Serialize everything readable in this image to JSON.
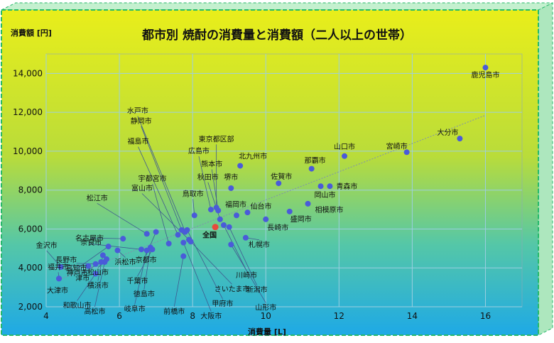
{
  "chart_data": {
    "type": "scatter",
    "title": "都市別 焼酎の消費量と消費額（二人以上の世帯）",
    "xlabel": "消費量 [L]",
    "ylabel": "消費額 [円]",
    "xlim": [
      4,
      17
    ],
    "ylim": [
      2000,
      15000
    ],
    "xticks": [
      4,
      6,
      8,
      10,
      12,
      14,
      16
    ],
    "yticks": [
      2000,
      4000,
      6000,
      8000,
      10000,
      12000,
      14000
    ],
    "ytick_labels": [
      "2,000",
      "4,000",
      "6,000",
      "8,000",
      "10,000",
      "12,000",
      "14,000"
    ],
    "grid": true,
    "trendline": true,
    "colors": {
      "point": "#4a5bd9",
      "highlight": "#e84a3c",
      "grid": "#9ccfe0",
      "frame": "#1bc86a"
    },
    "points": [
      {
        "name": "鹿児島市",
        "x": 16.0,
        "y": 14300
      },
      {
        "name": "大分市",
        "x": 15.3,
        "y": 10650
      },
      {
        "name": "宮崎市",
        "x": 13.85,
        "y": 9950
      },
      {
        "name": "山口市",
        "x": 12.15,
        "y": 9750
      },
      {
        "name": "那覇市",
        "x": 11.25,
        "y": 9100
      },
      {
        "name": "青森市",
        "x": 11.75,
        "y": 8200
      },
      {
        "name": "岡山市",
        "x": 11.5,
        "y": 8200
      },
      {
        "name": "相模原市",
        "x": 11.15,
        "y": 7300
      },
      {
        "name": "盛岡市",
        "x": 10.65,
        "y": 6900
      },
      {
        "name": "佐賀市",
        "x": 10.35,
        "y": 8350
      },
      {
        "name": "長崎市",
        "x": 10.0,
        "y": 6500
      },
      {
        "name": "仙台市",
        "x": 9.5,
        "y": 6850
      },
      {
        "name": "札幌市",
        "x": 9.45,
        "y": 5550
      },
      {
        "name": "北九州市",
        "x": 9.3,
        "y": 9250
      },
      {
        "name": "福岡市",
        "x": 9.2,
        "y": 6700
      },
      {
        "name": "堺市",
        "x": 9.05,
        "y": 8100
      },
      {
        "name": "東京都区部",
        "x": 8.65,
        "y": 7100
      },
      {
        "name": "広島市",
        "x": 8.5,
        "y": 7000
      },
      {
        "name": "熊本市",
        "x": 8.7,
        "y": 6950
      },
      {
        "name": "秋田市",
        "x": 8.75,
        "y": 6500
      },
      {
        "name": "鳥取市",
        "x": 8.05,
        "y": 6700
      },
      {
        "name": "全国",
        "x": 8.62,
        "y": 6100,
        "highlight": true
      },
      {
        "name": "新潟市",
        "x": 9.0,
        "y": 6100
      },
      {
        "name": "川崎市",
        "x": 8.85,
        "y": 6200
      },
      {
        "name": "山形市",
        "x": 9.05,
        "y": 5200
      },
      {
        "name": "さいたま市",
        "x": 7.95,
        "y": 5350
      },
      {
        "name": "大阪市",
        "x": 7.75,
        "y": 5300
      },
      {
        "name": "甲府市",
        "x": 7.85,
        "y": 5950
      },
      {
        "name": "水戸市",
        "x": 7.8,
        "y": 5850
      },
      {
        "name": "静岡市",
        "x": 7.7,
        "y": 5950
      },
      {
        "name": "福島市",
        "x": 7.6,
        "y": 5700
      },
      {
        "name": "宇都宮市",
        "x": 7.35,
        "y": 5250
      },
      {
        "name": "富山市",
        "x": 7.9,
        "y": 5450
      },
      {
        "name": "前橋市",
        "x": 7.75,
        "y": 4600
      },
      {
        "name": "京都市",
        "x": 7.0,
        "y": 5850
      },
      {
        "name": "千葉市",
        "x": 6.9,
        "y": 4950
      },
      {
        "name": "徳島市",
        "x": 6.85,
        "y": 5050
      },
      {
        "name": "岐阜市",
        "x": 6.75,
        "y": 4900
      },
      {
        "name": "松江市",
        "x": 6.75,
        "y": 5750
      },
      {
        "name": "名古屋市",
        "x": 6.6,
        "y": 4950
      },
      {
        "name": "奈良市",
        "x": 6.1,
        "y": 5500
      },
      {
        "name": "浜松市",
        "x": 5.95,
        "y": 4900
      },
      {
        "name": "神戸市",
        "x": 5.7,
        "y": 5100
      },
      {
        "name": "松山市",
        "x": 5.65,
        "y": 4450
      },
      {
        "name": "高松市",
        "x": 5.6,
        "y": 4300
      },
      {
        "name": "横浜市",
        "x": 5.55,
        "y": 4650
      },
      {
        "name": "津市",
        "x": 5.5,
        "y": 4300
      },
      {
        "name": "高知市",
        "x": 5.35,
        "y": 4200
      },
      {
        "name": "長野市",
        "x": 5.15,
        "y": 4100
      },
      {
        "name": "和歌山市",
        "x": 5.35,
        "y": 3700
      },
      {
        "name": "金沢市",
        "x": 4.4,
        "y": 4050
      },
      {
        "name": "福井市",
        "x": 4.35,
        "y": 3450
      },
      {
        "name": "大津市",
        "x": 4.35,
        "y": 3450
      }
    ]
  }
}
